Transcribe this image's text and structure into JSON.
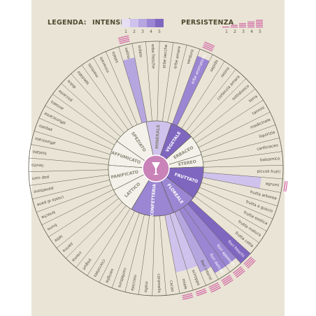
{
  "legend": {
    "title": "LEGENDA:",
    "intensity_label": "INTENSITÀ",
    "persistence_label": "PERSISTENZA",
    "scale": [
      "1",
      "2",
      "3",
      "4",
      "5"
    ]
  },
  "colors": {
    "background": "#e9e4d6",
    "accent": "#8067c0",
    "light_accent": "#b9a9de",
    "pale_accent": "#d9cfef",
    "persistence": "#d46aa5",
    "center": "#c983b9",
    "line": "#5b5a47"
  },
  "center_icon": "wine-glass-icon",
  "categories": [
    {
      "name": "MINERALE",
      "level": 2
    },
    {
      "name": "VEGETALE",
      "level": 5
    },
    {
      "name": "ERBACEO",
      "level": 0
    },
    {
      "name": "ETEREO",
      "level": 0
    },
    {
      "name": "FRUTTATO",
      "level": 5
    },
    {
      "name": "FLOREALE",
      "level": 4
    },
    {
      "name": "CONFETTERIA",
      "level": 4
    },
    {
      "name": "LATTICO",
      "level": 0
    },
    {
      "name": "PANIFICATO",
      "level": 0
    },
    {
      "name": "AFFUMICATO",
      "level": 0
    },
    {
      "name": "SPEZIATO",
      "level": 0
    }
  ],
  "descriptors": [
    {
      "name": "salino",
      "level": 3,
      "persistence": 4
    },
    {
      "name": "iodato",
      "level": 0,
      "persistence": 0
    },
    {
      "name": "erbe fresche",
      "level": 0,
      "persistence": 0
    },
    {
      "name": "erbe secche",
      "level": 0,
      "persistence": 0
    },
    {
      "name": "erbe amare",
      "level": 0,
      "persistence": 0
    },
    {
      "name": "verdura",
      "level": 0,
      "persistence": 0
    },
    {
      "name": "erbe aromatiche",
      "level": 4,
      "persistence": 4
    },
    {
      "name": "sapido",
      "level": 0,
      "persistence": 0
    },
    {
      "name": "resina",
      "level": 0,
      "persistence": 0
    },
    {
      "name": "corteccia amara",
      "level": 0,
      "persistence": 0
    },
    {
      "name": "sottobosco",
      "level": 0,
      "persistence": 0
    },
    {
      "name": "terra",
      "level": 0,
      "persistence": 0
    },
    {
      "name": "tannini",
      "level": 0,
      "persistence": 0
    },
    {
      "name": "medicinale",
      "level": 0,
      "persistence": 0
    },
    {
      "name": "liquirizia",
      "level": 0,
      "persistence": 0
    },
    {
      "name": "canforaceo",
      "level": 0,
      "persistence": 0
    },
    {
      "name": "balsamico",
      "level": 0,
      "persistence": 0
    },
    {
      "name": "piccoli frutti",
      "level": 0,
      "persistence": 0
    },
    {
      "name": "agrumi",
      "level": 2,
      "persistence": 2
    },
    {
      "name": "frutta arborea",
      "level": 0,
      "persistence": 0
    },
    {
      "name": "frutta a guscio",
      "level": 0,
      "persistence": 0
    },
    {
      "name": "frutta esotica",
      "level": 0,
      "persistence": 0
    },
    {
      "name": "frutta matura",
      "level": 0,
      "persistence": 0
    },
    {
      "name": "frutta cotta",
      "level": 0,
      "persistence": 0
    },
    {
      "name": "fiori freschi",
      "level": 5,
      "persistence": 4
    },
    {
      "name": "fiori appassiti",
      "level": 4,
      "persistence": 4
    },
    {
      "name": "fiori delicati",
      "level": 4,
      "persistence": 4
    },
    {
      "name": "fiori intensi",
      "level": 3,
      "persistence": 4
    },
    {
      "name": "sciroppo",
      "level": 2,
      "persistence": 3
    },
    {
      "name": "miele",
      "level": 2,
      "persistence": 3
    },
    {
      "name": "cacao",
      "level": 0,
      "persistence": 0
    },
    {
      "name": "caramello",
      "level": 0,
      "persistence": 0
    },
    {
      "name": "malto",
      "level": 0,
      "persistence": 0
    },
    {
      "name": "nocciola",
      "level": 0,
      "persistence": 0
    },
    {
      "name": "confettura",
      "level": 0,
      "persistence": 0
    },
    {
      "name": "vaniglia",
      "level": 0,
      "persistence": 0
    },
    {
      "name": "cioccolato",
      "level": 0,
      "persistence": 0
    },
    {
      "name": "yogurt",
      "level": 0,
      "persistence": 0
    },
    {
      "name": "crema",
      "level": 0,
      "persistence": 0
    },
    {
      "name": "panna",
      "level": 0,
      "persistence": 0
    },
    {
      "name": "latte",
      "level": 0,
      "persistence": 0
    },
    {
      "name": "burro",
      "level": 0,
      "persistence": 0
    },
    {
      "name": "brioche",
      "level": 0,
      "persistence": 0
    },
    {
      "name": "crosta di pane",
      "level": 0,
      "persistence": 0
    },
    {
      "name": "panettone",
      "level": 0,
      "persistence": 0
    },
    {
      "name": "pop corn",
      "level": 0,
      "persistence": 0
    },
    {
      "name": "lievito",
      "level": 0,
      "persistence": 0
    },
    {
      "name": "tostato",
      "level": 0,
      "persistence": 0
    },
    {
      "name": "affumicato",
      "level": 0,
      "persistence": 0
    },
    {
      "name": "pepato",
      "level": 0,
      "persistence": 0
    },
    {
      "name": "affumicante",
      "level": 0,
      "persistence": 0
    },
    {
      "name": "anisato",
      "level": 0,
      "persistence": 0
    },
    {
      "name": "piccante",
      "level": 0,
      "persistence": 0
    },
    {
      "name": "dolce",
      "level": 0,
      "persistence": 0
    },
    {
      "name": "speziato",
      "level": 0,
      "persistence": 0
    },
    {
      "name": "mentolo",
      "level": 0,
      "persistence": 0
    },
    {
      "name": "minerale",
      "level": 0,
      "persistence": 0
    },
    {
      "name": "salato",
      "level": 0,
      "persistence": 0
    }
  ]
}
